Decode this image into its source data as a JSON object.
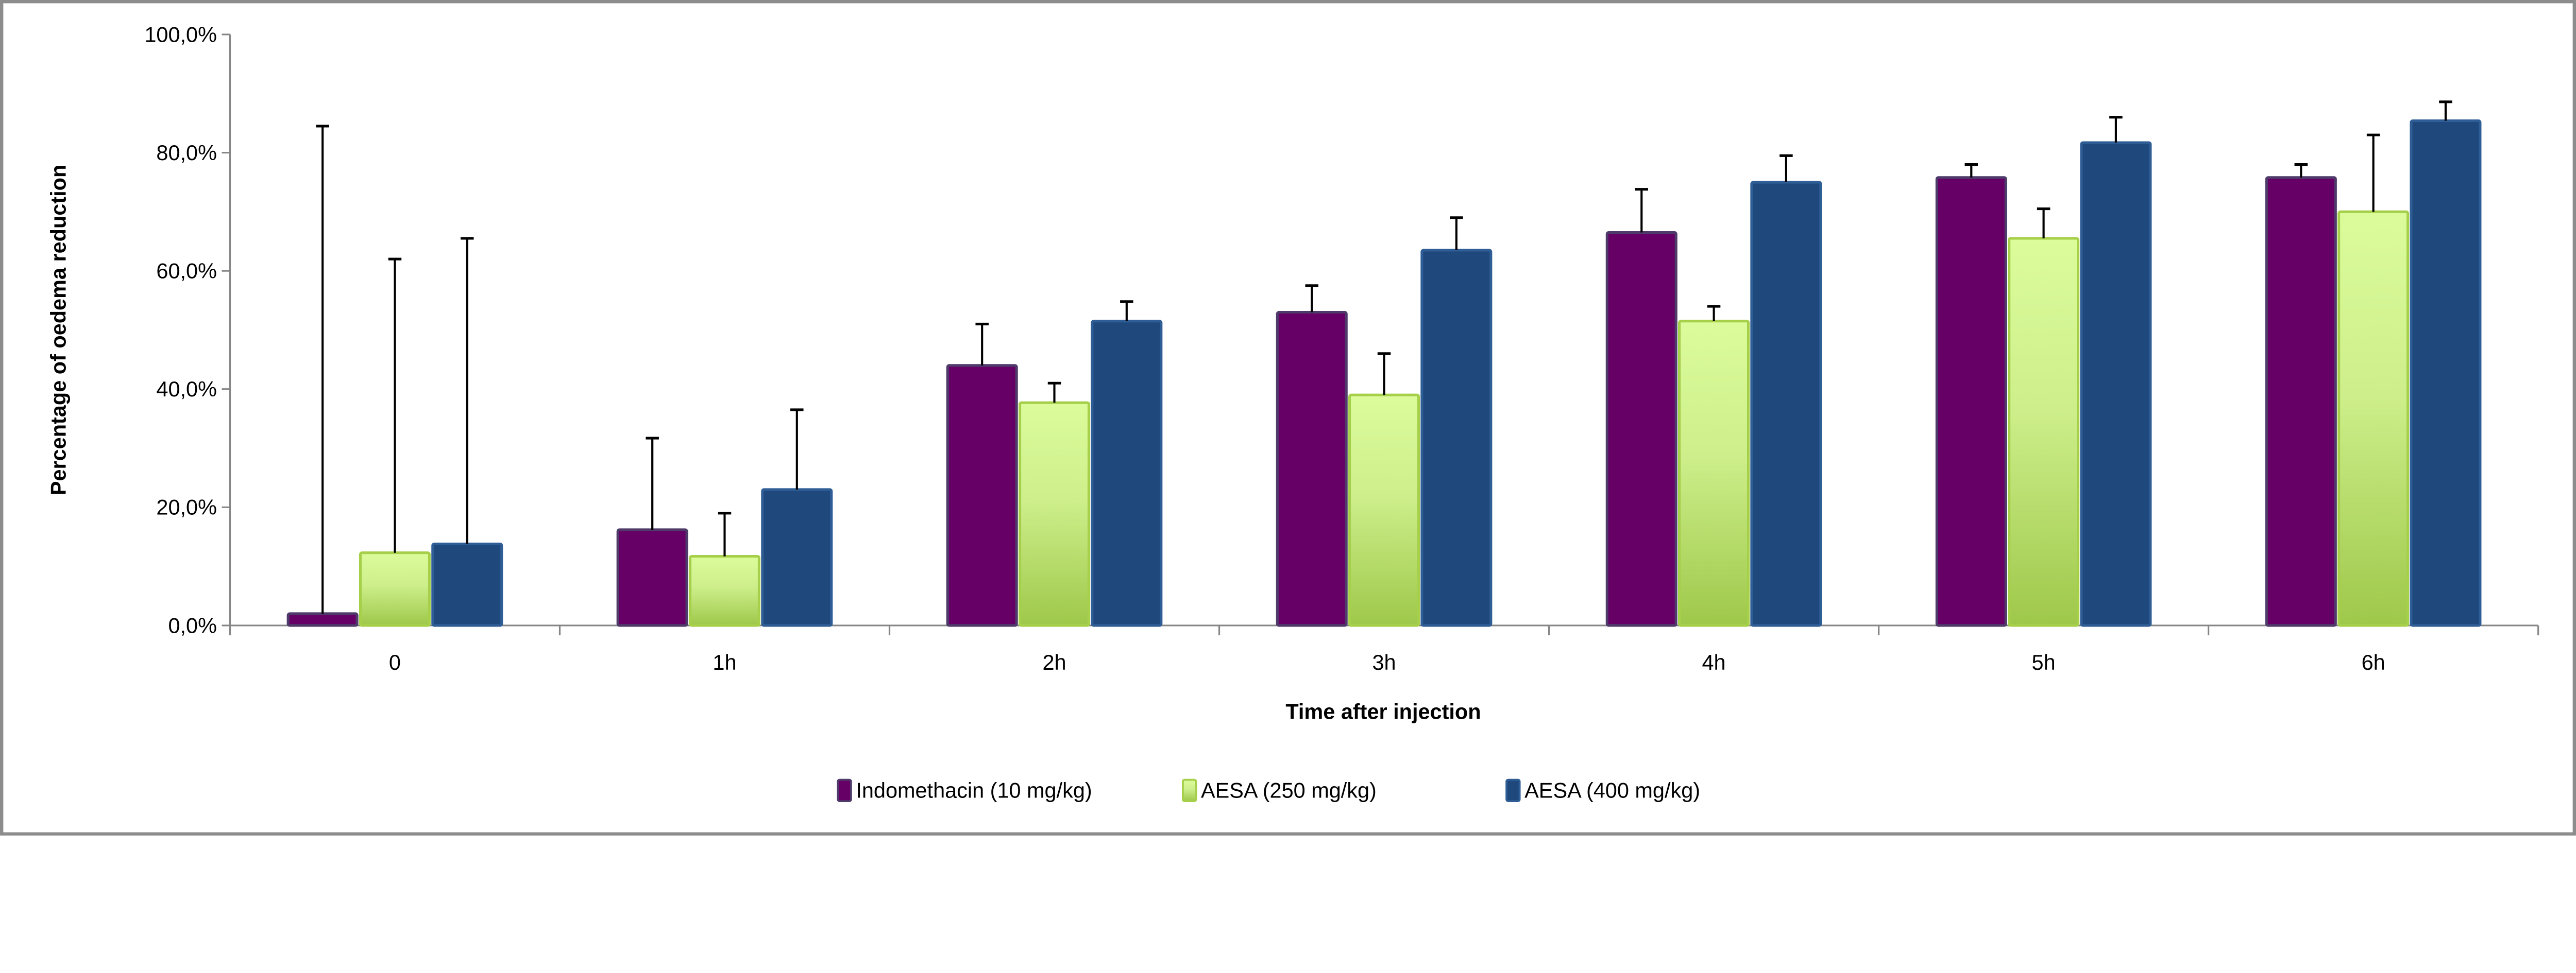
{
  "chart_data": {
    "type": "bar",
    "xlabel": "Time after injection",
    "ylabel": "Percentage of oedema reduction",
    "ylim": [
      0,
      100
    ],
    "yticks": [
      "0,0%",
      "20,0%",
      "40,0%",
      "60,0%",
      "80,0%",
      "100,0%"
    ],
    "ytick_values": [
      0,
      20,
      40,
      60,
      80,
      100
    ],
    "categories": [
      "0",
      "1h",
      "2h",
      "3h",
      "4h",
      "5h",
      "6h"
    ],
    "grid": false,
    "legend_position": "bottom",
    "error_bars": "upper only",
    "series": [
      {
        "name": "Indomethacin (10 mg/kg)",
        "color": "#660066",
        "values": [
          2.0,
          16.2,
          44.0,
          53.0,
          66.5,
          75.8,
          75.8
        ],
        "error_upper": [
          84.5,
          31.7,
          51.0,
          57.5,
          73.8,
          78.0,
          78.0
        ]
      },
      {
        "name": "AESA (250 mg/kg)",
        "color": "#b5d95a",
        "values": [
          12.3,
          11.7,
          37.7,
          39.0,
          51.5,
          65.5,
          70.0
        ],
        "error_upper": [
          62.0,
          19.0,
          41.0,
          46.0,
          54.0,
          70.5,
          83.0
        ]
      },
      {
        "name": "AESA (400 mg/kg)",
        "color": "#1f497d",
        "values": [
          13.8,
          23.0,
          51.5,
          63.5,
          75.0,
          81.7,
          85.4
        ],
        "error_upper": [
          65.5,
          36.5,
          54.8,
          69.0,
          79.5,
          86.0,
          88.6
        ]
      }
    ]
  }
}
